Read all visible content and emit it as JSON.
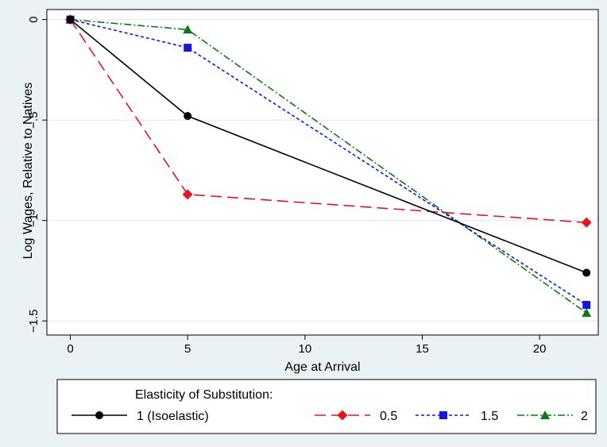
{
  "chart_data": {
    "type": "line",
    "xlabel": "Age at Arrival",
    "ylabel": "Log Wages, Relative to Natives",
    "xlim": [
      -1,
      22.5
    ],
    "ylim": [
      -1.57,
      0.05
    ],
    "x_ticks": [
      0,
      5,
      10,
      15,
      20
    ],
    "y_ticks": [
      0,
      -0.5,
      -1,
      -1.5
    ],
    "x_tick_labels": [
      "0",
      "5",
      "10",
      "15",
      "20"
    ],
    "y_tick_labels": [
      "0",
      "−.5",
      "−1",
      "−1.5"
    ],
    "grid": "horizontal",
    "legend_title": "Elasticity of Substitution:",
    "legend_position": "bottom",
    "x": [
      0,
      5,
      22
    ],
    "series": [
      {
        "name": "1 (Isoelastic)",
        "values": [
          0,
          -0.48,
          -1.26
        ],
        "color": "#000000",
        "marker": "circle",
        "dash": "solid"
      },
      {
        "name": "0.5",
        "values": [
          0,
          -0.87,
          -1.01
        ],
        "color": "#e8131c",
        "marker": "diamond",
        "dash": "long-dash"
      },
      {
        "name": "1.5",
        "values": [
          0,
          -0.14,
          -1.42
        ],
        "color": "#1515e0",
        "marker": "square",
        "dash": "short-dash"
      },
      {
        "name": "2",
        "values": [
          0,
          -0.05,
          -1.46
        ],
        "color": "#0a7a12",
        "marker": "triangle",
        "dash": "dash-dot"
      }
    ]
  }
}
